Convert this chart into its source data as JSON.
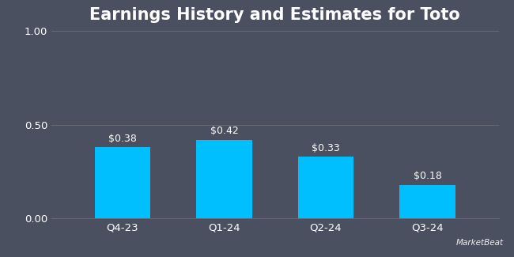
{
  "title": "Earnings History and Estimates for Toto",
  "categories": [
    "Q4-23",
    "Q1-24",
    "Q2-24",
    "Q3-24"
  ],
  "values": [
    0.38,
    0.42,
    0.33,
    0.18
  ],
  "labels": [
    "$0.38",
    "$0.42",
    "$0.33",
    "$0.18"
  ],
  "bar_color": "#00BFFF",
  "background_color": "#4B5060",
  "text_color": "#FFFFFF",
  "grid_color": "#666A75",
  "ylim": [
    0,
    1.0
  ],
  "yticks": [
    0.0,
    0.5,
    1.0
  ],
  "ytick_labels": [
    "0.00",
    "0.50",
    "1.00"
  ],
  "title_fontsize": 15,
  "label_fontsize": 9,
  "tick_fontsize": 9.5,
  "bar_width": 0.55
}
